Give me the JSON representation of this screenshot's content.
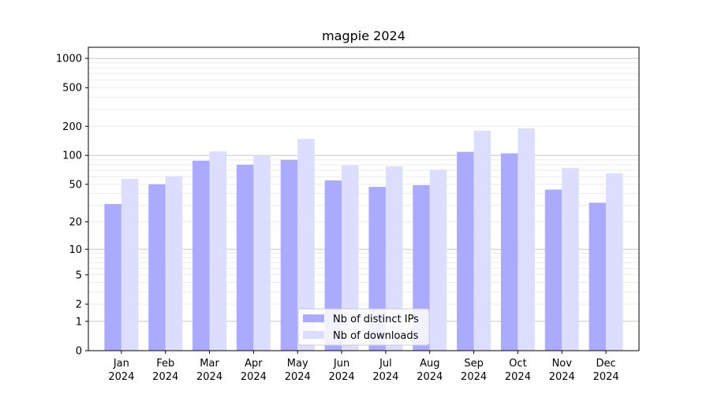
{
  "chart_data": {
    "type": "bar",
    "title": "magpie 2024",
    "xlabel": "",
    "ylabel": "",
    "y_scale": "symlog",
    "ylim": [
      0,
      1300
    ],
    "yticks": [
      0,
      1,
      2,
      5,
      10,
      20,
      50,
      100,
      200,
      500,
      1000
    ],
    "categories": [
      {
        "month": "Jan",
        "year": "2024"
      },
      {
        "month": "Feb",
        "year": "2024"
      },
      {
        "month": "Mar",
        "year": "2024"
      },
      {
        "month": "Apr",
        "year": "2024"
      },
      {
        "month": "May",
        "year": "2024"
      },
      {
        "month": "Jun",
        "year": "2024"
      },
      {
        "month": "Jul",
        "year": "2024"
      },
      {
        "month": "Aug",
        "year": "2024"
      },
      {
        "month": "Sep",
        "year": "2024"
      },
      {
        "month": "Oct",
        "year": "2024"
      },
      {
        "month": "Nov",
        "year": "2024"
      },
      {
        "month": "Dec",
        "year": "2024"
      }
    ],
    "series": [
      {
        "name": "Nb of distinct IPs",
        "color": "#aaaaff",
        "values": [
          31,
          50,
          88,
          80,
          90,
          55,
          47,
          49,
          109,
          105,
          44,
          32
        ]
      },
      {
        "name": "Nb of downloads",
        "color": "#ddddff",
        "values": [
          57,
          61,
          110,
          100,
          148,
          79,
          77,
          71,
          180,
          190,
          74,
          65
        ]
      }
    ],
    "grid": true,
    "legend_position": "bottom-center"
  }
}
